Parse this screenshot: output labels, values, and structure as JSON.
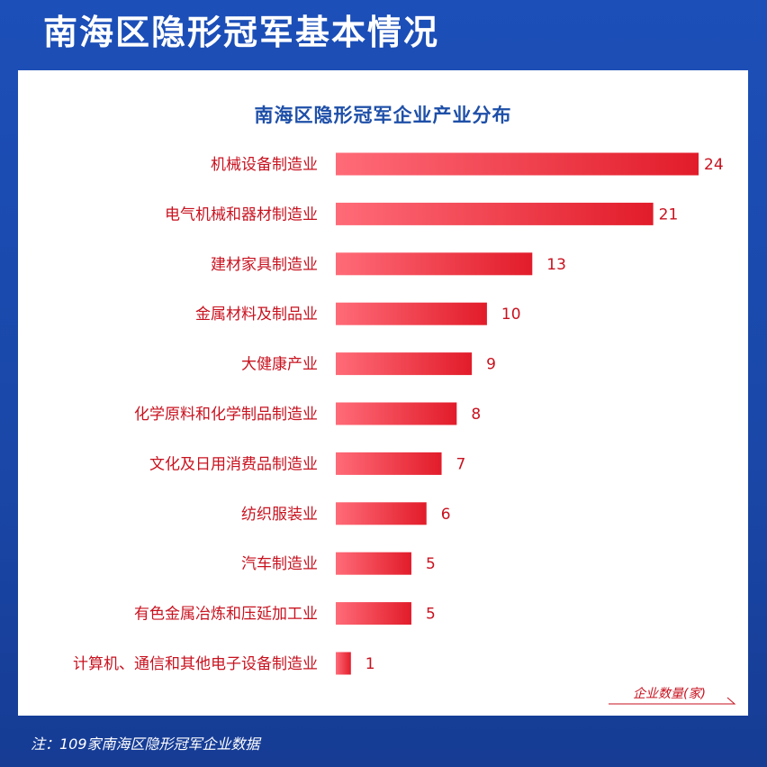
{
  "page": {
    "title": "南海区隐形冠军基本情况",
    "footnote": "注：109家南海区隐形冠军企业数据"
  },
  "colors": {
    "background": "#1c4fb8",
    "bar_dark": "#e21c2a",
    "bar_light": "#ff6b78",
    "label": "#c8121f",
    "title": "#1e4fa8"
  },
  "chart_data": {
    "type": "bar",
    "orientation": "horizontal",
    "title": "南海区隐形冠军企业产业分布",
    "categories": [
      "机械设备制造业",
      "电气机械和器材制造业",
      "建材家具制造业",
      "金属材料及制品业",
      "大健康产业",
      "化学原料和化学制品制造业",
      "文化及日用消费品制造业",
      "纺织服装业",
      "汽车制造业",
      "有色金属冶炼和压延加工业",
      "计算机、通信和其他电子设备制造业"
    ],
    "values": [
      24,
      21,
      13,
      10,
      9,
      8,
      7,
      6,
      5,
      5,
      1
    ],
    "xlabel": "企业数量(家)",
    "ylabel": "",
    "xlim": [
      0,
      24
    ],
    "grid": false,
    "legend": "none"
  }
}
